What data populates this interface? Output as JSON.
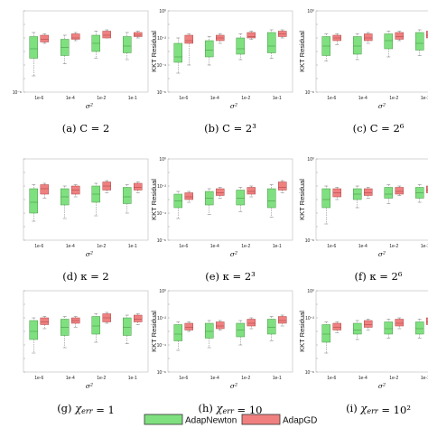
{
  "colors": {
    "newton": "#7fe07f",
    "gd": "#f08080",
    "newton_edge": "#4a9a4a",
    "gd_edge": "#b04848"
  },
  "legend": {
    "newton": "AdapNewton",
    "gd": "AdapGD"
  },
  "chart_data": [
    {
      "id": "a",
      "caption": "(a) C = 2",
      "type": "box",
      "yscale": "log",
      "ylim_exp": [
        -6,
        0
      ],
      "ylabel": "",
      "xlabel": "σ²",
      "categories": [
        "1e-6",
        "1e-4",
        "1e-2",
        "1e-1"
      ],
      "ytick_labels": [
        "",
        "",
        "",
        "10⁻⁶"
      ],
      "series": [
        {
          "key": "newton",
          "boxes": [
            {
              "low": -4.8,
              "q1": -3.5,
              "med": -2.8,
              "q3": -1.9,
              "high": -1.6
            },
            {
              "low": -3.9,
              "q1": -3.3,
              "med": -2.7,
              "q3": -2.1,
              "high": -1.8
            },
            {
              "low": -3.5,
              "q1": -3.0,
              "med": -2.4,
              "q3": -1.8,
              "high": -1.5
            },
            {
              "low": -3.6,
              "q1": -3.1,
              "med": -2.6,
              "q3": -1.9,
              "high": -1.6
            }
          ]
        },
        {
          "key": "gd",
          "boxes": [
            {
              "low": -2.4,
              "q1": -2.3,
              "med": -2.1,
              "q3": -1.8,
              "high": -1.7
            },
            {
              "low": -2.2,
              "q1": -2.1,
              "med": -2.0,
              "q3": -1.7,
              "high": -1.6
            },
            {
              "low": -2.0,
              "q1": -2.0,
              "med": -1.8,
              "q3": -1.5,
              "high": -1.4
            },
            {
              "low": -2.0,
              "q1": -1.9,
              "med": -1.8,
              "q3": -1.6,
              "high": -1.5
            }
          ]
        }
      ]
    },
    {
      "id": "b",
      "caption": "(b) C = 2³",
      "type": "box",
      "yscale": "log",
      "ylim_exp": [
        -6,
        0
      ],
      "ylabel": "KKT Residual",
      "xlabel": "σ²",
      "categories": [
        "1e-6",
        "1e-4",
        "1e-2",
        "1e-1"
      ],
      "ytick_labels": [
        "10⁰",
        "10⁻²",
        "10⁻⁴",
        "10⁻⁶"
      ],
      "series": [
        {
          "key": "newton",
          "boxes": [
            {
              "low": -4.6,
              "q1": -3.8,
              "med": -3.4,
              "q3": -2.4,
              "high": -2.0
            },
            {
              "low": -4.0,
              "q1": -3.4,
              "med": -2.9,
              "q3": -2.2,
              "high": -1.9
            },
            {
              "low": -3.6,
              "q1": -3.2,
              "med": -2.8,
              "q3": -2.0,
              "high": -1.7
            },
            {
              "low": -3.5,
              "q1": -3.1,
              "med": -2.6,
              "q3": -1.6,
              "high": -1.4
            }
          ]
        },
        {
          "key": "gd",
          "boxes": [
            {
              "low": -4.0,
              "q1": -2.4,
              "med": -2.2,
              "q3": -1.8,
              "high": -1.7
            },
            {
              "low": -2.4,
              "q1": -2.2,
              "med": -2.0,
              "q3": -1.8,
              "high": -1.7
            },
            {
              "low": -2.1,
              "q1": -2.0,
              "med": -1.9,
              "q3": -1.6,
              "high": -1.5
            },
            {
              "low": -2.0,
              "q1": -1.9,
              "med": -1.7,
              "q3": -1.5,
              "high": -1.4
            }
          ]
        }
      ]
    },
    {
      "id": "c",
      "caption": "(c) C = 2⁶",
      "type": "box",
      "yscale": "log",
      "ylim_exp": [
        -6,
        0
      ],
      "ylabel": "KKT Residual",
      "xlabel": "σ²",
      "categories": [
        "1e-6",
        "1e-4",
        "1e-2",
        "1e-1"
      ],
      "ytick_labels": [
        "10⁰",
        "",
        "",
        "10⁻⁶"
      ],
      "series": [
        {
          "key": "newton",
          "boxes": [
            {
              "low": -3.7,
              "q1": -3.3,
              "med": -2.6,
              "q3": -1.9,
              "high": -1.7
            },
            {
              "low": -3.6,
              "q1": -3.2,
              "med": -2.6,
              "q3": -1.9,
              "high": -1.7
            },
            {
              "low": -3.4,
              "q1": -2.8,
              "med": -2.2,
              "q3": -1.7,
              "high": -1.5
            },
            {
              "low": -3.3,
              "q1": -2.9,
              "med": -2.4,
              "q3": -1.6,
              "high": -1.4
            }
          ]
        },
        {
          "key": "gd",
          "boxes": [
            {
              "low": -2.5,
              "q1": -2.2,
              "med": -2.0,
              "q3": -1.8,
              "high": -1.7
            },
            {
              "low": -2.4,
              "q1": -2.2,
              "med": -2.0,
              "q3": -1.7,
              "high": -1.6
            },
            {
              "low": -2.2,
              "q1": -2.1,
              "med": -1.9,
              "q3": -1.6,
              "high": -1.5
            },
            {
              "low": -2.2,
              "q1": -2.0,
              "med": -1.8,
              "q3": -1.5,
              "high": -1.4
            }
          ]
        }
      ]
    },
    {
      "id": "d",
      "caption": "(d) κ = 2",
      "type": "box",
      "yscale": "log",
      "ylim_exp": [
        -6,
        0
      ],
      "ylabel": "",
      "xlabel": "σ²",
      "categories": [
        "1e-6",
        "1e-4",
        "1e-2",
        "1e-1"
      ],
      "ytick_labels": [
        "",
        "",
        "",
        ""
      ],
      "series": [
        {
          "key": "newton",
          "boxes": [
            {
              "low": -4.6,
              "q1": -4.0,
              "med": -3.2,
              "q3": -2.2,
              "high": -1.9
            },
            {
              "low": -4.4,
              "q1": -3.4,
              "med": -2.8,
              "q3": -2.2,
              "high": -2.0
            },
            {
              "low": -4.2,
              "q1": -3.2,
              "med": -2.6,
              "q3": -2.0,
              "high": -1.8
            },
            {
              "low": -4.0,
              "q1": -3.3,
              "med": -2.8,
              "q3": -2.1,
              "high": -1.9
            }
          ]
        },
        {
          "key": "gd",
          "boxes": [
            {
              "low": -2.9,
              "q1": -2.6,
              "med": -2.2,
              "q3": -1.9,
              "high": -1.8
            },
            {
              "low": -2.8,
              "q1": -2.6,
              "med": -2.3,
              "q3": -2.0,
              "high": -1.9
            },
            {
              "low": -2.5,
              "q1": -2.3,
              "med": -2.0,
              "q3": -1.7,
              "high": -1.6
            },
            {
              "low": -2.5,
              "q1": -2.3,
              "med": -2.1,
              "q3": -1.8,
              "high": -1.7
            }
          ]
        }
      ]
    },
    {
      "id": "e",
      "caption": "(e) κ = 2³",
      "type": "box",
      "yscale": "log",
      "ylim_exp": [
        -6,
        0
      ],
      "ylabel": "KKT Residual",
      "xlabel": "σ²",
      "categories": [
        "1e-6",
        "1e-4",
        "1e-2",
        "1e-1"
      ],
      "ytick_labels": [
        "10⁰",
        "10⁻²",
        "10⁻⁴",
        "10⁻⁶"
      ],
      "series": [
        {
          "key": "newton",
          "boxes": [
            {
              "low": -4.4,
              "q1": -3.6,
              "med": -3.1,
              "q3": -2.6,
              "high": -2.4
            },
            {
              "low": -4.1,
              "q1": -3.4,
              "med": -2.9,
              "q3": -2.4,
              "high": -2.2
            },
            {
              "low": -3.9,
              "q1": -3.4,
              "med": -2.9,
              "q3": -2.3,
              "high": -2.1
            },
            {
              "low": -4.3,
              "q1": -3.6,
              "med": -3.1,
              "q3": -2.2,
              "high": -1.9
            }
          ]
        },
        {
          "key": "gd",
          "boxes": [
            {
              "low": -3.2,
              "q1": -3.0,
              "med": -2.8,
              "q3": -2.5,
              "high": -2.4
            },
            {
              "low": -2.9,
              "q1": -2.7,
              "med": -2.5,
              "q3": -2.2,
              "high": -2.1
            },
            {
              "low": -2.8,
              "q1": -2.6,
              "med": -2.4,
              "q3": -2.1,
              "high": -2.0
            },
            {
              "low": -2.5,
              "q1": -2.3,
              "med": -2.1,
              "q3": -1.7,
              "high": -1.6
            }
          ]
        }
      ]
    },
    {
      "id": "f",
      "caption": "(f) κ = 2⁶",
      "type": "box",
      "yscale": "log",
      "ylim_exp": [
        -6,
        0
      ],
      "ylabel": "KKT Residual",
      "xlabel": "σ²",
      "categories": [
        "1e-6",
        "1e-4",
        "1e-2",
        "1e-1"
      ],
      "ytick_labels": [
        "10⁰",
        "",
        "",
        "10⁻⁶"
      ],
      "series": [
        {
          "key": "newton",
          "boxes": [
            {
              "low": -4.8,
              "q1": -3.6,
              "med": -3.0,
              "q3": -2.2,
              "high": -2.0
            },
            {
              "low": -3.6,
              "q1": -3.0,
              "med": -2.6,
              "q3": -2.2,
              "high": -2.0
            },
            {
              "low": -3.3,
              "q1": -2.9,
              "med": -2.6,
              "q3": -2.1,
              "high": -1.9
            },
            {
              "low": -3.2,
              "q1": -2.9,
              "med": -2.5,
              "q3": -2.1,
              "high": -1.9
            }
          ]
        },
        {
          "key": "gd",
          "boxes": [
            {
              "low": -3.0,
              "q1": -2.8,
              "med": -2.5,
              "q3": -2.2,
              "high": -2.1
            },
            {
              "low": -2.9,
              "q1": -2.7,
              "med": -2.5,
              "q3": -2.2,
              "high": -2.1
            },
            {
              "low": -2.7,
              "q1": -2.6,
              "med": -2.4,
              "q3": -2.1,
              "high": -2.0
            },
            {
              "low": -2.7,
              "q1": -2.5,
              "med": -2.3,
              "q3": -2.0,
              "high": -1.9
            }
          ]
        }
      ]
    },
    {
      "id": "g",
      "caption": "(g) χ_err = 1",
      "type": "box",
      "yscale": "log",
      "ylim_exp": [
        -6,
        0
      ],
      "ylabel": "",
      "xlabel": "σ²",
      "categories": [
        "1e-6",
        "1e-4",
        "1e-2",
        "1e-1"
      ],
      "ytick_labels": [
        "",
        "",
        "",
        ""
      ],
      "series": [
        {
          "key": "newton",
          "boxes": [
            {
              "low": -4.6,
              "q1": -3.6,
              "med": -3.0,
              "q3": -2.2,
              "high": -2.0
            },
            {
              "low": -4.2,
              "q1": -3.3,
              "med": -2.7,
              "q3": -2.1,
              "high": -1.9
            },
            {
              "low": -3.8,
              "q1": -3.2,
              "med": -2.6,
              "q3": -1.9,
              "high": -1.7
            },
            {
              "low": -3.9,
              "q1": -3.3,
              "med": -2.7,
              "q3": -2.0,
              "high": -1.8
            }
          ]
        },
        {
          "key": "gd",
          "boxes": [
            {
              "low": -2.8,
              "q1": -2.5,
              "med": -2.3,
              "q3": -2.0,
              "high": -1.9
            },
            {
              "low": -2.7,
              "q1": -2.4,
              "med": -2.2,
              "q3": -2.0,
              "high": -1.9
            },
            {
              "low": -2.4,
              "q1": -2.3,
              "med": -2.0,
              "q3": -1.7,
              "high": -1.6
            },
            {
              "low": -2.5,
              "q1": -2.3,
              "med": -2.1,
              "q3": -1.8,
              "high": -1.7
            }
          ]
        }
      ]
    },
    {
      "id": "h",
      "caption": "(h) χ_err = 10",
      "type": "box",
      "yscale": "log",
      "ylim_exp": [
        -6,
        0
      ],
      "ylabel": "KKT Residual",
      "xlabel": "σ²",
      "categories": [
        "1e-6",
        "1e-4",
        "1e-2",
        "1e-1"
      ],
      "ytick_labels": [
        "10⁰",
        "10⁻²",
        "10⁻⁴",
        "10⁻⁶"
      ],
      "series": [
        {
          "key": "newton",
          "boxes": [
            {
              "low": -4.4,
              "q1": -3.7,
              "med": -3.2,
              "q3": -2.5,
              "high": -2.3
            },
            {
              "low": -4.2,
              "q1": -3.5,
              "med": -3.0,
              "q3": -2.4,
              "high": -2.2
            },
            {
              "low": -4.0,
              "q1": -3.4,
              "med": -2.9,
              "q3": -2.4,
              "high": -2.2
            },
            {
              "low": -3.7,
              "q1": -3.2,
              "med": -2.7,
              "q3": -2.1,
              "high": -1.9
            }
          ]
        },
        {
          "key": "gd",
          "boxes": [
            {
              "low": -3.0,
              "q1": -2.9,
              "med": -2.7,
              "q3": -2.4,
              "high": -2.3
            },
            {
              "low": -2.9,
              "q1": -2.8,
              "med": -2.6,
              "q3": -2.3,
              "high": -2.2
            },
            {
              "low": -2.8,
              "q1": -2.6,
              "med": -2.4,
              "q3": -2.1,
              "high": -2.0
            },
            {
              "low": -2.6,
              "q1": -2.4,
              "med": -2.2,
              "q3": -1.9,
              "high": -1.8
            }
          ]
        }
      ]
    },
    {
      "id": "i",
      "caption": "(i) χ_err = 10²",
      "type": "box",
      "yscale": "log",
      "ylim_exp": [
        -6,
        0
      ],
      "ylabel": "KKT Residual",
      "xlabel": "σ²",
      "categories": [
        "1e-6",
        "1e-4",
        "1e-2",
        "1e-1"
      ],
      "ytick_labels": [
        "10⁰",
        "10⁻²",
        "",
        "10⁻⁶"
      ],
      "series": [
        {
          "key": "newton",
          "boxes": [
            {
              "low": -4.6,
              "q1": -3.8,
              "med": -3.2,
              "q3": -2.5,
              "high": -2.3
            },
            {
              "low": -3.6,
              "q1": -3.2,
              "med": -2.9,
              "q3": -2.4,
              "high": -2.2
            },
            {
              "low": -3.5,
              "q1": -3.2,
              "med": -2.8,
              "q3": -2.3,
              "high": -2.1
            },
            {
              "low": -3.5,
              "q1": -3.2,
              "med": -2.8,
              "q3": -2.3,
              "high": -2.1
            }
          ]
        },
        {
          "key": "gd",
          "boxes": [
            {
              "low": -3.1,
              "q1": -2.9,
              "med": -2.7,
              "q3": -2.4,
              "high": -2.3
            },
            {
              "low": -2.9,
              "q1": -2.7,
              "med": -2.5,
              "q3": -2.2,
              "high": -2.1
            },
            {
              "low": -2.8,
              "q1": -2.6,
              "med": -2.4,
              "q3": -2.1,
              "high": -2.0
            },
            {
              "low": -2.7,
              "q1": -2.5,
              "med": -2.3,
              "q3": -2.0,
              "high": -1.9
            }
          ]
        }
      ]
    }
  ]
}
